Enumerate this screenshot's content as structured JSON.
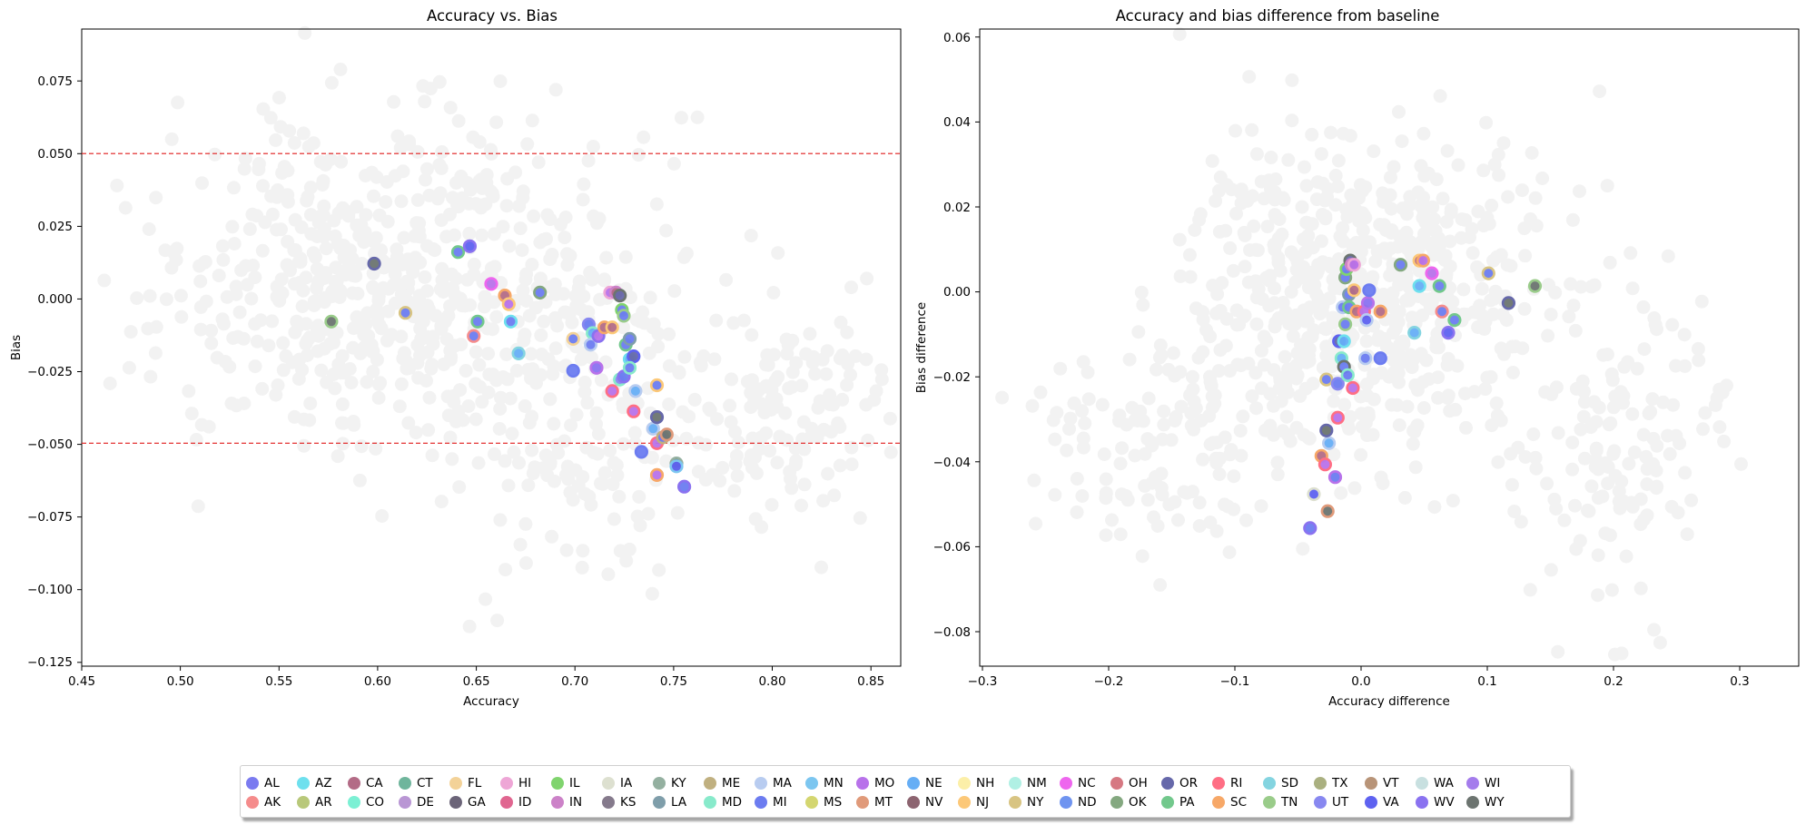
{
  "left_chart": {
    "title": "Accuracy vs. Bias",
    "xlabel": "Accuracy",
    "ylabel": "Bias",
    "xticks": [
      "0.45",
      "0.50",
      "0.55",
      "0.60",
      "0.65",
      "0.70",
      "0.75",
      "0.80",
      "0.85"
    ],
    "yticks": [
      "0.075",
      "0.050",
      "0.025",
      "0.000",
      "−0.025",
      "−0.050",
      "−0.075",
      "−0.100",
      "−0.125"
    ]
  },
  "right_chart": {
    "title": "Accuracy and bias difference from baseline",
    "xlabel": "Accuracy difference",
    "ylabel": "Bias difference",
    "xticks": [
      "−0.3",
      "−0.2",
      "−0.1",
      "0.0",
      "0.1",
      "0.2",
      "0.3"
    ],
    "yticks": [
      "0.06",
      "0.04",
      "0.02",
      "0.00",
      "−0.02",
      "−0.04",
      "−0.06",
      "−0.08"
    ]
  },
  "legend": [
    {
      "label": "AL",
      "color": "#7b7bf0"
    },
    {
      "label": "AK",
      "color": "#f58c8c"
    },
    {
      "label": "AZ",
      "color": "#6ee0ee"
    },
    {
      "label": "AR",
      "color": "#b8c87a"
    },
    {
      "label": "CA",
      "color": "#b36b86"
    },
    {
      "label": "CO",
      "color": "#7cf0d4"
    },
    {
      "label": "CT",
      "color": "#6fb59c"
    },
    {
      "label": "DE",
      "color": "#b996d4"
    },
    {
      "label": "FL",
      "color": "#f3d298"
    },
    {
      "label": "GA",
      "color": "#6b6478"
    },
    {
      "label": "HI",
      "color": "#eea6d6"
    },
    {
      "label": "ID",
      "color": "#e06690"
    },
    {
      "label": "IL",
      "color": "#80d46e"
    },
    {
      "label": "IN",
      "color": "#cc82c8"
    },
    {
      "label": "IA",
      "color": "#dde0d0"
    },
    {
      "label": "KS",
      "color": "#857a8c"
    },
    {
      "label": "KY",
      "color": "#94b0a0"
    },
    {
      "label": "LA",
      "color": "#7f9eaa"
    },
    {
      "label": "ME",
      "color": "#c0b080"
    },
    {
      "label": "MD",
      "color": "#88eacb"
    },
    {
      "label": "MA",
      "color": "#b8ccf0"
    },
    {
      "label": "MI",
      "color": "#6c7cf0"
    },
    {
      "label": "MN",
      "color": "#7cc6f0"
    },
    {
      "label": "MS",
      "color": "#d4d670"
    },
    {
      "label": "MO",
      "color": "#b872ea"
    },
    {
      "label": "MT",
      "color": "#e09a7a"
    },
    {
      "label": "NE",
      "color": "#66aef5"
    },
    {
      "label": "NV",
      "color": "#8c6470"
    },
    {
      "label": "NH",
      "color": "#fcefa8"
    },
    {
      "label": "NJ",
      "color": "#fcc878"
    },
    {
      "label": "NM",
      "color": "#b0f0e4"
    },
    {
      "label": "NY",
      "color": "#d8c482"
    },
    {
      "label": "NC",
      "color": "#ee66ee"
    },
    {
      "label": "ND",
      "color": "#6f94f0"
    },
    {
      "label": "OH",
      "color": "#d67882"
    },
    {
      "label": "OK",
      "color": "#84a880"
    },
    {
      "label": "OR",
      "color": "#6668aa"
    },
    {
      "label": "PA",
      "color": "#72c88c"
    },
    {
      "label": "RI",
      "color": "#ff6e84"
    },
    {
      "label": "SC",
      "color": "#f7a868"
    },
    {
      "label": "SD",
      "color": "#84d4e0"
    },
    {
      "label": "TN",
      "color": "#9acc8a"
    },
    {
      "label": "TX",
      "color": "#aab080"
    },
    {
      "label": "UT",
      "color": "#8888f0"
    },
    {
      "label": "VT",
      "color": "#b89478"
    },
    {
      "label": "VA",
      "color": "#5e62f0"
    },
    {
      "label": "WA",
      "color": "#c8e0e0"
    },
    {
      "label": "WV",
      "color": "#8a72f0"
    },
    {
      "label": "WI",
      "color": "#a47cec"
    },
    {
      "label": "WY",
      "color": "#6c7470"
    }
  ],
  "chart_data": [
    {
      "type": "scatter",
      "title": "Accuracy vs. Bias",
      "xlabel": "Accuracy",
      "ylabel": "Bias",
      "xlim": [
        0.45,
        0.87
      ],
      "ylim": [
        -0.127,
        0.093
      ],
      "reference_lines": [
        0.05,
        -0.05
      ],
      "grid": false,
      "background_points_color": "#f2f2f2",
      "points": [
        {
          "x": 0.6,
          "y": 0.012,
          "fill": "#6c7470",
          "edge": "#6668aa"
        },
        {
          "x": 0.643,
          "y": 0.016,
          "fill": "#6c7cf0",
          "edge": "#72c88c"
        },
        {
          "x": 0.649,
          "y": 0.018,
          "fill": "#5e62f0",
          "edge": "#8a72f0"
        },
        {
          "x": 0.578,
          "y": -0.008,
          "fill": "#6c7470",
          "edge": "#9acc8a"
        },
        {
          "x": 0.616,
          "y": -0.005,
          "fill": "#6c7cf0",
          "edge": "#d8c482"
        },
        {
          "x": 0.653,
          "y": -0.008,
          "fill": "#6c7cf0",
          "edge": "#72c88c"
        },
        {
          "x": 0.651,
          "y": -0.013,
          "fill": "#6c7cf0",
          "edge": "#f58c8c"
        },
        {
          "x": 0.66,
          "y": 0.005,
          "fill": "#b872ea",
          "edge": "#ee66ee"
        },
        {
          "x": 0.667,
          "y": 0.001,
          "fill": "#b36b86",
          "edge": "#f7a868"
        },
        {
          "x": 0.669,
          "y": -0.002,
          "fill": "#b872ea",
          "edge": "#fcc878"
        },
        {
          "x": 0.67,
          "y": -0.008,
          "fill": "#6c7cf0",
          "edge": "#6ee0ee"
        },
        {
          "x": 0.674,
          "y": -0.019,
          "fill": "#66aef5",
          "edge": "#84d4e0"
        },
        {
          "x": 0.685,
          "y": 0.002,
          "fill": "#6c7cf0",
          "edge": "#84a880"
        },
        {
          "x": 0.702,
          "y": -0.014,
          "fill": "#6c7cf0",
          "edge": "#f3d298"
        },
        {
          "x": 0.702,
          "y": -0.025,
          "fill": "#6c7cf0",
          "edge": "#6c7cf0"
        },
        {
          "x": 0.71,
          "y": -0.009,
          "fill": "#6c7cf0",
          "edge": "#8888f0"
        },
        {
          "x": 0.712,
          "y": -0.012,
          "fill": "#66aef5",
          "edge": "#88eacb"
        },
        {
          "x": 0.711,
          "y": -0.016,
          "fill": "#6c7cf0",
          "edge": "#b8ccf0"
        },
        {
          "x": 0.714,
          "y": -0.024,
          "fill": "#8a72f0",
          "edge": "#b872ea"
        },
        {
          "x": 0.715,
          "y": -0.013,
          "fill": "#b872ea",
          "edge": "#8a72f0"
        },
        {
          "x": 0.718,
          "y": -0.01,
          "fill": "#b36b86",
          "edge": "#f7a868"
        },
        {
          "x": 0.721,
          "y": 0.002,
          "fill": "#b872ea",
          "edge": "#eea6d6"
        },
        {
          "x": 0.722,
          "y": -0.01,
          "fill": "#b36b86",
          "edge": "#fcc878"
        },
        {
          "x": 0.722,
          "y": -0.032,
          "fill": "#b872ea",
          "edge": "#ff6e84"
        },
        {
          "x": 0.724,
          "y": 0.002,
          "fill": "#b36b86",
          "edge": "#cc82c8"
        },
        {
          "x": 0.726,
          "y": 0.001,
          "fill": "#6668aa",
          "edge": "#6c7470"
        },
        {
          "x": 0.727,
          "y": -0.004,
          "fill": "#6c7cf0",
          "edge": "#80d46e"
        },
        {
          "x": 0.728,
          "y": -0.006,
          "fill": "#6c7cf0",
          "edge": "#9acc8a"
        },
        {
          "x": 0.726,
          "y": -0.028,
          "fill": "#8888f0",
          "edge": "#88eacb"
        },
        {
          "x": 0.729,
          "y": -0.016,
          "fill": "#6c7cf0",
          "edge": "#72c88c"
        },
        {
          "x": 0.728,
          "y": -0.027,
          "fill": "#6c7cf0",
          "edge": "#8a72f0"
        },
        {
          "x": 0.731,
          "y": -0.014,
          "fill": "#6c7cf0",
          "edge": "#7f9eaa"
        },
        {
          "x": 0.731,
          "y": -0.021,
          "fill": "#66aef5",
          "edge": "#6ee0ee"
        },
        {
          "x": 0.733,
          "y": -0.02,
          "fill": "#6668aa",
          "edge": "#5e62f0"
        },
        {
          "x": 0.731,
          "y": -0.024,
          "fill": "#6c7cf0",
          "edge": "#88eacb"
        },
        {
          "x": 0.734,
          "y": -0.032,
          "fill": "#66aef5",
          "edge": "#b8ccf0"
        },
        {
          "x": 0.733,
          "y": -0.039,
          "fill": "#b872ea",
          "edge": "#ff6e84"
        },
        {
          "x": 0.737,
          "y": -0.053,
          "fill": "#6c7cf0",
          "edge": "#6c7cf0"
        },
        {
          "x": 0.743,
          "y": -0.045,
          "fill": "#66aef5",
          "edge": "#b8ccf0"
        },
        {
          "x": 0.745,
          "y": -0.041,
          "fill": "#6c7470",
          "edge": "#6668aa"
        },
        {
          "x": 0.745,
          "y": -0.03,
          "fill": "#6c7cf0",
          "edge": "#fcc878"
        },
        {
          "x": 0.745,
          "y": -0.05,
          "fill": "#b872ea",
          "edge": "#ff6e84"
        },
        {
          "x": 0.748,
          "y": -0.048,
          "fill": "#6c7cf0",
          "edge": "#c0b080"
        },
        {
          "x": 0.75,
          "y": -0.047,
          "fill": "#6c7470",
          "edge": "#e09a7a"
        },
        {
          "x": 0.745,
          "y": -0.061,
          "fill": "#b872ea",
          "edge": "#f7a868"
        },
        {
          "x": 0.755,
          "y": -0.057,
          "fill": "#6c7470",
          "edge": "#94b0a0"
        },
        {
          "x": 0.755,
          "y": -0.058,
          "fill": "#5e62f0",
          "edge": "#7cc6f0"
        },
        {
          "x": 0.759,
          "y": -0.065,
          "fill": "#6c7cf0",
          "edge": "#8a72f0"
        }
      ]
    },
    {
      "type": "scatter",
      "title": "Accuracy and bias difference from baseline",
      "xlabel": "Accuracy difference",
      "ylabel": "Bias difference",
      "xlim": [
        -0.31,
        0.342
      ],
      "ylim": [
        -0.0885,
        0.0615
      ],
      "grid": false,
      "background_points_color": "#f2f2f2",
      "points": [
        {
          "x": -0.047,
          "y": -0.056,
          "fill": "#6c7cf0",
          "edge": "#8a72f0"
        },
        {
          "x": -0.044,
          "y": -0.048,
          "fill": "#5e62f0",
          "edge": "#dde0d0"
        },
        {
          "x": -0.038,
          "y": -0.039,
          "fill": "#b36b86",
          "edge": "#f7a868"
        },
        {
          "x": -0.035,
          "y": -0.041,
          "fill": "#b872ea",
          "edge": "#ff6e84"
        },
        {
          "x": -0.033,
          "y": -0.052,
          "fill": "#6c7470",
          "edge": "#e09a7a"
        },
        {
          "x": -0.032,
          "y": -0.036,
          "fill": "#66aef5",
          "edge": "#b8ccf0"
        },
        {
          "x": -0.034,
          "y": -0.033,
          "fill": "#6c7470",
          "edge": "#6668aa"
        },
        {
          "x": -0.034,
          "y": -0.021,
          "fill": "#6c7cf0",
          "edge": "#d8c482"
        },
        {
          "x": -0.027,
          "y": -0.044,
          "fill": "#6c7cf0",
          "edge": "#b872ea"
        },
        {
          "x": -0.025,
          "y": -0.03,
          "fill": "#b872ea",
          "edge": "#ff6e84"
        },
        {
          "x": -0.025,
          "y": -0.022,
          "fill": "#6c7cf0",
          "edge": "#8888f0"
        },
        {
          "x": -0.024,
          "y": -0.012,
          "fill": "#6668aa",
          "edge": "#5e62f0"
        },
        {
          "x": -0.022,
          "y": -0.016,
          "fill": "#66aef5",
          "edge": "#88eacb"
        },
        {
          "x": -0.021,
          "y": -0.004,
          "fill": "#6c7cf0",
          "edge": "#b8ccf0"
        },
        {
          "x": -0.02,
          "y": -0.012,
          "fill": "#66aef5",
          "edge": "#6ee0ee"
        },
        {
          "x": -0.02,
          "y": -0.018,
          "fill": "#6c7cf0",
          "edge": "#6c7470"
        },
        {
          "x": -0.019,
          "y": -0.008,
          "fill": "#6c7cf0",
          "edge": "#9acc8a"
        },
        {
          "x": -0.019,
          "y": 0.003,
          "fill": "#6c7cf0",
          "edge": "#84a880"
        },
        {
          "x": -0.018,
          "y": 0.005,
          "fill": "#6c7cf0",
          "edge": "#80d46e"
        },
        {
          "x": -0.017,
          "y": -0.02,
          "fill": "#6c7cf0",
          "edge": "#88eacb"
        },
        {
          "x": -0.016,
          "y": -0.001,
          "fill": "#6c7cf0",
          "edge": "#7f9eaa"
        },
        {
          "x": -0.016,
          "y": -0.004,
          "fill": "#6c7cf0",
          "edge": "#72c88c"
        },
        {
          "x": -0.015,
          "y": 0.007,
          "fill": "#6668aa",
          "edge": "#6c7470"
        },
        {
          "x": -0.014,
          "y": 0.006,
          "fill": "#b36b86",
          "edge": "#cc82c8"
        },
        {
          "x": -0.013,
          "y": -0.023,
          "fill": "#b872ea",
          "edge": "#ff6e84"
        },
        {
          "x": -0.012,
          "y": 0.006,
          "fill": "#b872ea",
          "edge": "#eea6d6"
        },
        {
          "x": -0.012,
          "y": 0.0,
          "fill": "#b36b86",
          "edge": "#fcc878"
        },
        {
          "x": -0.01,
          "y": -0.005,
          "fill": "#b36b86",
          "edge": "#f7a868"
        },
        {
          "x": -0.004,
          "y": -0.005,
          "fill": "#b872ea",
          "edge": "#ff6e84"
        },
        {
          "x": -0.003,
          "y": -0.016,
          "fill": "#6c7cf0",
          "edge": "#b8ccf0"
        },
        {
          "x": -0.002,
          "y": -0.007,
          "fill": "#5e62f0",
          "edge": "#b8ccf0"
        },
        {
          "x": -0.001,
          "y": -0.003,
          "fill": "#8a72f0",
          "edge": "#b872ea"
        },
        {
          "x": 0.0,
          "y": 0.0,
          "fill": "#6c7cf0",
          "edge": "#6c7cf0"
        },
        {
          "x": 0.009,
          "y": -0.005,
          "fill": "#b36b86",
          "edge": "#f7a868"
        },
        {
          "x": 0.009,
          "y": -0.016,
          "fill": "#6c7cf0",
          "edge": "#6c7cf0"
        },
        {
          "x": 0.025,
          "y": 0.006,
          "fill": "#6c7cf0",
          "edge": "#84a880"
        },
        {
          "x": 0.036,
          "y": -0.01,
          "fill": "#66aef5",
          "edge": "#84d4e0"
        },
        {
          "x": 0.04,
          "y": 0.001,
          "fill": "#66aef5",
          "edge": "#6ee0ee"
        },
        {
          "x": 0.04,
          "y": 0.007,
          "fill": "#b36b86",
          "edge": "#fcc878"
        },
        {
          "x": 0.043,
          "y": 0.007,
          "fill": "#b872ea",
          "edge": "#f7a868"
        },
        {
          "x": 0.05,
          "y": 0.004,
          "fill": "#b872ea",
          "edge": "#ee66ee"
        },
        {
          "x": 0.056,
          "y": 0.001,
          "fill": "#6c7cf0",
          "edge": "#72c88c"
        },
        {
          "x": 0.058,
          "y": -0.005,
          "fill": "#6c7cf0",
          "edge": "#f58c8c"
        },
        {
          "x": 0.063,
          "y": -0.01,
          "fill": "#5e62f0",
          "edge": "#8a72f0"
        },
        {
          "x": 0.068,
          "y": -0.007,
          "fill": "#6c7cf0",
          "edge": "#72c88c"
        },
        {
          "x": 0.095,
          "y": 0.004,
          "fill": "#6c7cf0",
          "edge": "#d8c482"
        },
        {
          "x": 0.111,
          "y": -0.003,
          "fill": "#6c7470",
          "edge": "#6668aa"
        },
        {
          "x": 0.132,
          "y": 0.001,
          "fill": "#6c7470",
          "edge": "#9acc8a"
        }
      ]
    }
  ]
}
